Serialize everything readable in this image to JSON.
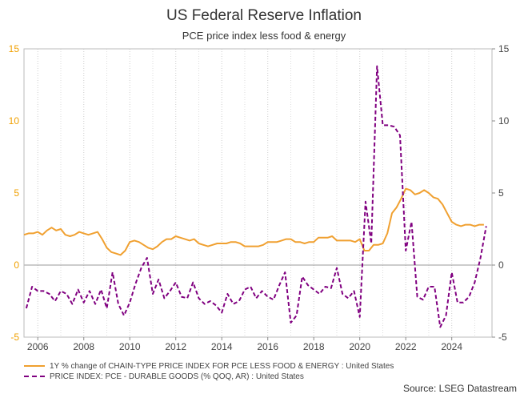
{
  "chart_data": {
    "type": "line",
    "title": "US Federal Reserve Inflation",
    "subtitle": "PCE price index less food & energy",
    "xlabel": "",
    "ylabel": "",
    "xlim": [
      2005.4,
      2025.75
    ],
    "ylim": [
      -5,
      15
    ],
    "y_ticks": [
      "15",
      "10",
      "5",
      "0",
      "-5"
    ],
    "y_tick_values": [
      15,
      10,
      5,
      0,
      -5
    ],
    "x_ticks": [
      "2006",
      "2008",
      "2010",
      "2012",
      "2014",
      "2016",
      "2018",
      "2020",
      "2022",
      "2024"
    ],
    "x_tick_values": [
      2006,
      2008,
      2010,
      2012,
      2014,
      2016,
      2018,
      2020,
      2022,
      2024
    ],
    "grid": "vertical dotted",
    "legend_position": "bottom-left",
    "source": "Source: LSEG Datastream",
    "series": [
      {
        "name": "1Y % change of CHAIN-TYPE PRICE INDEX FOR PCE LESS FOOD & ENERGY : United States",
        "color": "#f0a030",
        "style": "solid",
        "x": [
          2005.4,
          2005.6,
          2005.8,
          2006.0,
          2006.2,
          2006.4,
          2006.6,
          2006.8,
          2007.0,
          2007.2,
          2007.4,
          2007.6,
          2007.8,
          2008.0,
          2008.2,
          2008.4,
          2008.6,
          2008.8,
          2009.0,
          2009.2,
          2009.4,
          2009.6,
          2009.8,
          2010.0,
          2010.2,
          2010.4,
          2010.6,
          2010.8,
          2011.0,
          2011.2,
          2011.4,
          2011.6,
          2011.8,
          2012.0,
          2012.2,
          2012.4,
          2012.6,
          2012.8,
          2013.0,
          2013.2,
          2013.4,
          2013.6,
          2013.8,
          2014.0,
          2014.2,
          2014.4,
          2014.6,
          2014.8,
          2015.0,
          2015.2,
          2015.4,
          2015.6,
          2015.8,
          2016.0,
          2016.2,
          2016.4,
          2016.6,
          2016.8,
          2017.0,
          2017.2,
          2017.4,
          2017.6,
          2017.8,
          2018.0,
          2018.2,
          2018.4,
          2018.6,
          2018.8,
          2019.0,
          2019.2,
          2019.4,
          2019.6,
          2019.8,
          2020.0,
          2020.2,
          2020.4,
          2020.6,
          2020.8,
          2021.0,
          2021.2,
          2021.4,
          2021.6,
          2021.8,
          2022.0,
          2022.2,
          2022.4,
          2022.6,
          2022.8,
          2023.0,
          2023.2,
          2023.4,
          2023.6,
          2023.8,
          2024.0,
          2024.2,
          2024.4,
          2024.6,
          2024.8,
          2025.0,
          2025.2,
          2025.4
        ],
        "values": [
          2.1,
          2.2,
          2.2,
          2.3,
          2.1,
          2.4,
          2.6,
          2.4,
          2.5,
          2.1,
          2.0,
          2.1,
          2.3,
          2.2,
          2.1,
          2.2,
          2.3,
          1.8,
          1.2,
          0.9,
          0.8,
          0.7,
          1.0,
          1.6,
          1.7,
          1.6,
          1.4,
          1.2,
          1.1,
          1.3,
          1.6,
          1.8,
          1.8,
          2.0,
          1.9,
          1.8,
          1.7,
          1.8,
          1.5,
          1.4,
          1.3,
          1.4,
          1.5,
          1.5,
          1.5,
          1.6,
          1.6,
          1.5,
          1.3,
          1.3,
          1.3,
          1.3,
          1.4,
          1.6,
          1.6,
          1.6,
          1.7,
          1.8,
          1.8,
          1.6,
          1.6,
          1.5,
          1.6,
          1.6,
          1.9,
          1.9,
          1.9,
          2.0,
          1.7,
          1.7,
          1.7,
          1.7,
          1.6,
          1.8,
          1.0,
          1.0,
          1.4,
          1.4,
          1.5,
          2.2,
          3.6,
          4.0,
          4.6,
          5.3,
          5.2,
          4.9,
          5.0,
          5.2,
          5.0,
          4.7,
          4.6,
          4.2,
          3.6,
          3.0,
          2.8,
          2.7,
          2.8,
          2.8,
          2.7,
          2.8,
          2.8
        ]
      },
      {
        "name": "PRICE INDEX: PCE - DURABLE GOODS (% QOQ, AR) : United States",
        "color": "#800080",
        "style": "dashed",
        "x": [
          2005.5,
          2005.75,
          2006.0,
          2006.25,
          2006.5,
          2006.75,
          2007.0,
          2007.25,
          2007.5,
          2007.75,
          2008.0,
          2008.25,
          2008.5,
          2008.75,
          2009.0,
          2009.25,
          2009.5,
          2009.75,
          2010.0,
          2010.25,
          2010.5,
          2010.75,
          2011.0,
          2011.25,
          2011.5,
          2011.75,
          2012.0,
          2012.25,
          2012.5,
          2012.75,
          2013.0,
          2013.25,
          2013.5,
          2013.75,
          2014.0,
          2014.25,
          2014.5,
          2014.75,
          2015.0,
          2015.25,
          2015.5,
          2015.75,
          2016.0,
          2016.25,
          2016.5,
          2016.75,
          2017.0,
          2017.25,
          2017.5,
          2017.75,
          2018.0,
          2018.25,
          2018.5,
          2018.75,
          2019.0,
          2019.25,
          2019.5,
          2019.75,
          2020.0,
          2020.25,
          2020.5,
          2020.75,
          2021.0,
          2021.25,
          2021.5,
          2021.75,
          2022.0,
          2022.25,
          2022.5,
          2022.75,
          2023.0,
          2023.25,
          2023.5,
          2023.75,
          2024.0,
          2024.25,
          2024.5,
          2024.75,
          2025.0,
          2025.25,
          2025.5
        ],
        "values": [
          -3.0,
          -1.5,
          -1.8,
          -1.8,
          -2.0,
          -2.5,
          -1.8,
          -2.0,
          -2.7,
          -1.7,
          -2.6,
          -1.8,
          -2.7,
          -1.7,
          -3.0,
          -0.5,
          -2.7,
          -3.5,
          -2.6,
          -1.3,
          -0.2,
          0.5,
          -2.0,
          -1.0,
          -2.3,
          -1.8,
          -1.2,
          -2.2,
          -2.3,
          -1.2,
          -2.3,
          -2.7,
          -2.5,
          -2.8,
          -3.3,
          -2.0,
          -2.7,
          -2.5,
          -1.7,
          -1.5,
          -2.3,
          -1.8,
          -2.2,
          -2.4,
          -1.4,
          -0.5,
          -4.0,
          -3.5,
          -0.8,
          -1.4,
          -1.7,
          -2.0,
          -1.5,
          -1.6,
          -0.2,
          -2.0,
          -2.3,
          -1.8,
          -3.6,
          4.4,
          1.5,
          13.8,
          9.7,
          9.7,
          9.6,
          9.0,
          1.0,
          3.0,
          -2.2,
          -2.4,
          -1.5,
          -1.5,
          -4.3,
          -3.5,
          -0.5,
          -2.6,
          -2.6,
          -2.2,
          -1.2,
          0.5,
          2.7
        ]
      }
    ]
  }
}
